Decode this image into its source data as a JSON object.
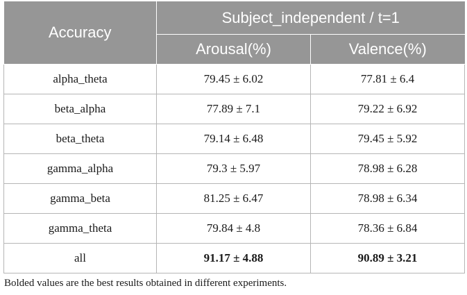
{
  "table": {
    "header": {
      "row_label": "Accuracy",
      "group": "Subject_independent / t=1",
      "columns": [
        "Arousal(%)",
        "Valence(%)"
      ]
    },
    "rows": [
      {
        "label": "alpha_theta",
        "arousal": "79.45 ± 6.02",
        "valence": "77.81 ± 6.4"
      },
      {
        "label": "beta_alpha",
        "arousal": "77.89 ± 7.1",
        "valence": "79.22 ± 6.92"
      },
      {
        "label": "beta_theta",
        "arousal": "79.14 ± 6.48",
        "valence": "79.45 ± 5.92"
      },
      {
        "label": "gamma_alpha",
        "arousal": "79.3 ± 5.97",
        "valence": "78.98 ± 6.28"
      },
      {
        "label": "gamma_beta",
        "arousal": "81.25 ± 6.47",
        "valence": "78.98 ± 6.34"
      },
      {
        "label": "gamma_theta",
        "arousal": "79.84 ± 4.8",
        "valence": "78.36 ± 6.84"
      },
      {
        "label": "all",
        "arousal": "91.17 ± 4.88",
        "valence": "90.89 ± 3.21",
        "bold": true
      }
    ]
  },
  "footnote": "Bolded values are the best results obtained in different experiments."
}
